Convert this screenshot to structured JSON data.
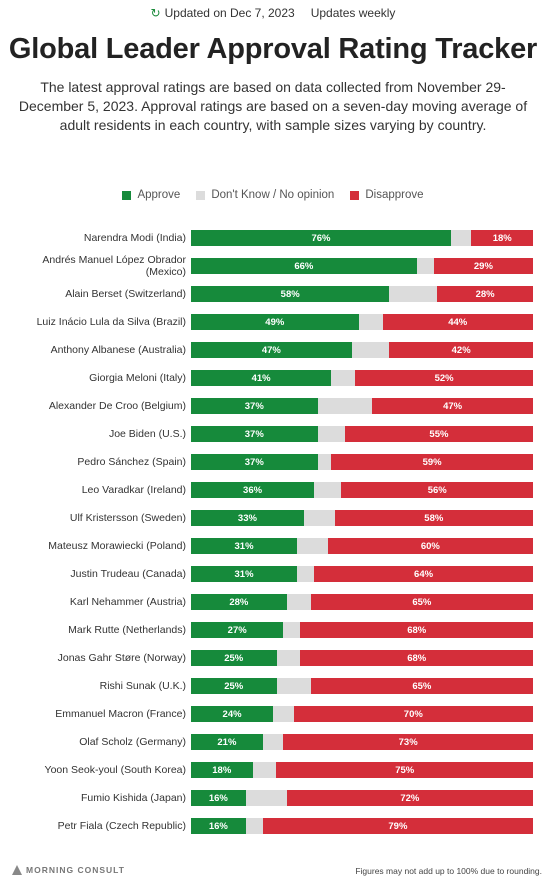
{
  "header": {
    "updated": "Updated on Dec 7, 2023",
    "frequency": "Updates weekly",
    "title": "Global Leader Approval Rating Tracker",
    "subtitle": "The latest approval ratings are based on data collected from November 29-December 5, 2023. Approval ratings are based on a seven-day moving average of adult residents in each country, with sample sizes varying by country."
  },
  "legend": {
    "approve": "Approve",
    "dont_know": "Don't Know / No opinion",
    "disapprove": "Disapprove"
  },
  "colors": {
    "approve": "#168a3b",
    "dont_know": "#dcdcdc",
    "disapprove": "#d42e3a"
  },
  "footer": {
    "logo": "MORNING CONSULT",
    "note": "Figures may not add up to 100% due to rounding."
  },
  "chart_data": {
    "type": "bar",
    "orientation": "horizontal",
    "stacked": true,
    "categories": [
      "Narendra Modi (India)",
      "Andrés Manuel López Obrador (Mexico)",
      "Alain Berset (Switzerland)",
      "Luiz Inácio Lula da Silva (Brazil)",
      "Anthony Albanese (Australia)",
      "Giorgia Meloni (Italy)",
      "Alexander De Croo (Belgium)",
      "Joe Biden (U.S.)",
      "Pedro Sánchez (Spain)",
      "Leo Varadkar (Ireland)",
      "Ulf Kristersson (Sweden)",
      "Mateusz Morawiecki (Poland)",
      "Justin Trudeau (Canada)",
      "Karl Nehammer (Austria)",
      "Mark Rutte (Netherlands)",
      "Jonas Gahr Støre (Norway)",
      "Rishi Sunak (U.K.)",
      "Emmanuel Macron (France)",
      "Olaf Scholz (Germany)",
      "Yoon Seok-youl (South Korea)",
      "Fumio Kishida (Japan)",
      "Petr Fiala (Czech Republic)"
    ],
    "series": [
      {
        "name": "Approve",
        "values": [
          76,
          66,
          58,
          49,
          47,
          41,
          37,
          37,
          37,
          36,
          33,
          31,
          31,
          28,
          27,
          25,
          25,
          24,
          21,
          18,
          16,
          16
        ]
      },
      {
        "name": "Don't Know / No opinion",
        "values": [
          6,
          5,
          14,
          7,
          11,
          7,
          16,
          8,
          4,
          8,
          9,
          9,
          5,
          7,
          5,
          7,
          10,
          6,
          6,
          7,
          12,
          5
        ]
      },
      {
        "name": "Disapprove",
        "values": [
          18,
          29,
          28,
          44,
          42,
          52,
          47,
          55,
          59,
          56,
          58,
          60,
          64,
          65,
          68,
          68,
          65,
          70,
          73,
          75,
          72,
          79
        ]
      }
    ],
    "data_labels": "percent on approve and disapprove segments",
    "xlim": [
      0,
      100
    ]
  }
}
